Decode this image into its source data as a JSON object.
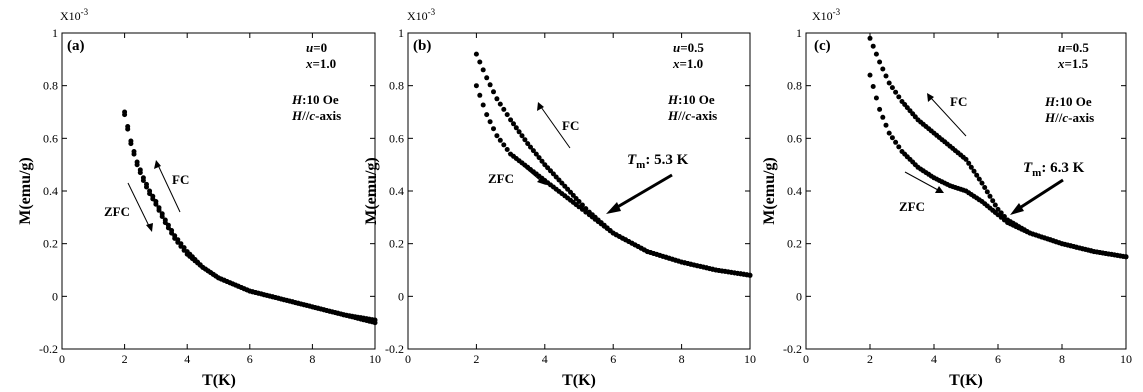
{
  "figure": {
    "x_unit_label": "T(K)",
    "y_unit_label": "M(emu/g)",
    "y_multiplier": "X10",
    "y_multiplier_exp": "-3"
  },
  "chart_data": [
    {
      "type": "scatter",
      "panel_label": "(a)",
      "xlabel": "T(K)",
      "ylabel": "M(emu/g)",
      "xlim": [
        0,
        10
      ],
      "ylim": [
        -0.2,
        1
      ],
      "xticks": [
        "0",
        "2",
        "4",
        "6",
        "8",
        "10"
      ],
      "yticks": [
        "-0.2",
        "0",
        "0.2",
        "0.4",
        "0.6",
        "0.8",
        "1"
      ],
      "params": {
        "u_symbol": "u",
        "u_value": "=0",
        "x_symbol": "x",
        "x_value": "=1.0",
        "H_symbol": "H",
        "H_value": ":10 Oe",
        "orient_symbol": "H",
        "orient_mid": "//",
        "orient_c": "c",
        "orient_tail": "-axis"
      },
      "labels": {
        "fc": "FC",
        "zfc": "ZFC"
      },
      "series": [
        {
          "name": "FC",
          "x": [
            2.0,
            2.2,
            2.4,
            2.6,
            2.8,
            3.0,
            3.3,
            3.6,
            4.0,
            4.5,
            5.0,
            6.0,
            7.0,
            8.0,
            9.0,
            10.0
          ],
          "y": [
            0.7,
            0.59,
            0.51,
            0.45,
            0.4,
            0.36,
            0.29,
            0.23,
            0.17,
            0.11,
            0.07,
            0.02,
            -0.01,
            -0.04,
            -0.07,
            -0.09
          ]
        },
        {
          "name": "ZFC",
          "x": [
            2.0,
            2.2,
            2.4,
            2.6,
            2.8,
            3.0,
            3.3,
            3.6,
            4.0,
            4.5,
            5.0,
            6.0,
            7.0,
            8.0,
            9.0,
            10.0
          ],
          "y": [
            0.69,
            0.58,
            0.5,
            0.44,
            0.39,
            0.35,
            0.28,
            0.22,
            0.16,
            0.11,
            0.07,
            0.02,
            -0.01,
            -0.04,
            -0.07,
            -0.1
          ]
        }
      ]
    },
    {
      "type": "scatter",
      "panel_label": "(b)",
      "xlabel": "T(K)",
      "ylabel": "M(emu/g)",
      "xlim": [
        0,
        10
      ],
      "ylim": [
        -0.2,
        1
      ],
      "xticks": [
        "0",
        "2",
        "4",
        "6",
        "8",
        "10"
      ],
      "yticks": [
        "-0.2",
        "0",
        "0.2",
        "0.4",
        "0.6",
        "0.8",
        "1"
      ],
      "params": {
        "u_symbol": "u",
        "u_value": "=0.5",
        "x_symbol": "x",
        "x_value": "=1.0",
        "H_symbol": "H",
        "H_value": ":10 Oe",
        "orient_symbol": "H",
        "orient_mid": "//",
        "orient_c": "c",
        "orient_tail": "-axis"
      },
      "labels": {
        "fc": "FC",
        "zfc": "ZFC",
        "tm_symbol": "T",
        "tm_sub": "m",
        "tm_value": ": 5.3 K"
      },
      "series": [
        {
          "name": "FC",
          "x": [
            2.0,
            2.3,
            2.6,
            3.0,
            3.5,
            4.0,
            4.5,
            5.0,
            5.3,
            6.0,
            7.0,
            8.0,
            9.0,
            10.0
          ],
          "y": [
            0.92,
            0.83,
            0.75,
            0.67,
            0.58,
            0.5,
            0.43,
            0.36,
            0.32,
            0.24,
            0.17,
            0.13,
            0.1,
            0.08
          ]
        },
        {
          "name": "ZFC",
          "x": [
            2.0,
            2.3,
            2.6,
            3.0,
            3.5,
            4.0,
            4.5,
            5.0,
            5.3,
            6.0,
            7.0,
            8.0,
            9.0,
            10.0
          ],
          "y": [
            0.8,
            0.69,
            0.61,
            0.54,
            0.49,
            0.44,
            0.39,
            0.34,
            0.31,
            0.24,
            0.17,
            0.13,
            0.1,
            0.08
          ]
        }
      ]
    },
    {
      "type": "scatter",
      "panel_label": "(c)",
      "xlabel": "T(K)",
      "ylabel": "M(emu/g)",
      "xlim": [
        0,
        10
      ],
      "ylim": [
        -0.2,
        1
      ],
      "xticks": [
        "0",
        "2",
        "4",
        "6",
        "8",
        "10"
      ],
      "yticks": [
        "-0.2",
        "0",
        "0.2",
        "0.4",
        "0.6",
        "0.8",
        "1"
      ],
      "params": {
        "u_symbol": "u",
        "u_value": "=0.5",
        "x_symbol": "x",
        "x_value": "=1.5",
        "H_symbol": "H",
        "H_value": ":10 Oe",
        "orient_symbol": "H",
        "orient_mid": "//",
        "orient_c": "c",
        "orient_tail": "-axis"
      },
      "labels": {
        "fc": "FC",
        "zfc": "ZFC",
        "tm_symbol": "T",
        "tm_sub": "m",
        "tm_value": ": 6.3 K"
      },
      "series": [
        {
          "name": "FC",
          "x": [
            2.0,
            2.3,
            2.6,
            3.0,
            3.5,
            4.0,
            4.5,
            5.0,
            5.5,
            6.0,
            6.3,
            7.0,
            8.0,
            9.0,
            10.0
          ],
          "y": [
            0.98,
            0.89,
            0.81,
            0.74,
            0.67,
            0.62,
            0.57,
            0.52,
            0.43,
            0.33,
            0.29,
            0.24,
            0.2,
            0.17,
            0.15
          ]
        },
        {
          "name": "ZFC",
          "x": [
            2.0,
            2.3,
            2.6,
            3.0,
            3.5,
            4.0,
            4.5,
            5.0,
            5.5,
            6.0,
            6.3,
            7.0,
            8.0,
            9.0,
            10.0
          ],
          "y": [
            0.84,
            0.71,
            0.62,
            0.55,
            0.49,
            0.45,
            0.42,
            0.4,
            0.36,
            0.31,
            0.28,
            0.24,
            0.2,
            0.17,
            0.15
          ]
        }
      ]
    }
  ]
}
